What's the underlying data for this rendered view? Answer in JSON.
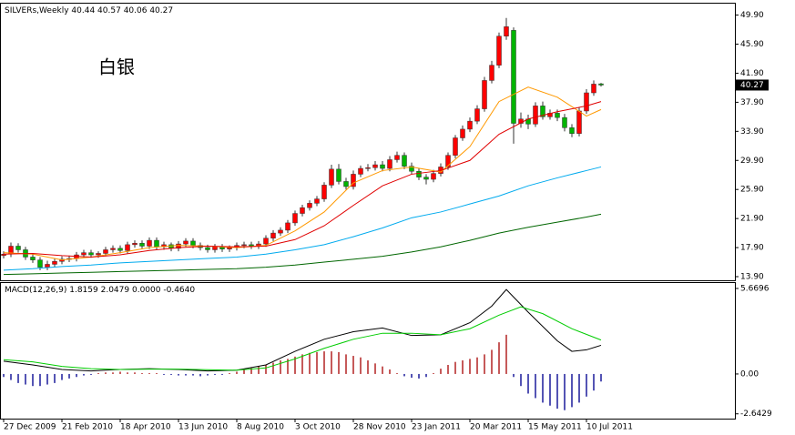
{
  "chart_data": [
    {
      "type": "candlestick",
      "symbol": "SILVERs,Weekly",
      "annotation": "白银",
      "categories": [
        "27 Dec 2009",
        null,
        null,
        null,
        null,
        null,
        null,
        null,
        "21 Feb 2010",
        null,
        null,
        null,
        null,
        null,
        null,
        null,
        "18 Apr 2010",
        null,
        null,
        null,
        null,
        null,
        null,
        null,
        "13 Jun 2010",
        null,
        null,
        null,
        null,
        null,
        null,
        null,
        "8 Aug 2010",
        null,
        null,
        null,
        null,
        null,
        null,
        null,
        "3 Oct 2010",
        null,
        null,
        null,
        null,
        null,
        null,
        null,
        "28 Nov 2010",
        null,
        null,
        null,
        null,
        null,
        null,
        null,
        "23 Jan 2011",
        null,
        null,
        null,
        null,
        null,
        null,
        null,
        "20 Mar 2011",
        null,
        null,
        null,
        null,
        null,
        null,
        null,
        "15 May 2011",
        null,
        null,
        null,
        null,
        null,
        null,
        null,
        "10 Jul 2011",
        null,
        null
      ],
      "open": [
        16.8,
        17.0,
        18.1,
        17.6,
        16.6,
        16.2,
        15.2,
        15.6,
        16.0,
        16.3,
        16.4,
        16.9,
        17.2,
        16.9,
        17.1,
        17.6,
        17.8,
        17.5,
        18.3,
        18.5,
        18.1,
        18.9,
        18.0,
        18.3,
        17.8,
        18.4,
        18.8,
        18.2,
        17.9,
        17.6,
        18.0,
        17.7,
        17.9,
        18.2,
        18.3,
        18.1,
        18.4,
        19.2,
        19.9,
        20.3,
        21.3,
        22.6,
        23.4,
        24.0,
        24.6,
        26.5,
        28.7,
        27.0,
        26.3,
        28.0,
        28.8,
        28.9,
        29.3,
        28.8,
        30.0,
        30.6,
        29.1,
        28.4,
        27.6,
        27.3,
        28.1,
        29.0,
        30.6,
        33.0,
        34.2,
        35.3,
        37.0,
        40.9,
        43.0,
        47.0,
        47.8,
        35.0,
        35.6,
        34.9,
        37.4,
        35.9,
        36.4,
        35.8,
        34.4,
        33.6,
        36.7,
        39.2,
        40.44
      ],
      "high": [
        17.4,
        18.6,
        18.5,
        18.0,
        17.0,
        16.6,
        16.1,
        16.4,
        16.7,
        16.8,
        17.3,
        17.6,
        17.6,
        17.4,
        18.0,
        18.2,
        18.2,
        18.7,
        18.9,
        18.9,
        19.3,
        19.3,
        18.7,
        18.6,
        18.8,
        19.2,
        19.2,
        18.6,
        18.3,
        18.4,
        18.4,
        18.2,
        18.6,
        18.7,
        18.7,
        18.8,
        19.6,
        20.3,
        20.7,
        21.7,
        23.0,
        23.8,
        24.4,
        25.0,
        26.9,
        29.3,
        29.4,
        27.5,
        28.5,
        29.2,
        29.4,
        29.8,
        29.8,
        30.5,
        31.1,
        31.0,
        29.6,
        28.8,
        28.0,
        28.6,
        29.5,
        31.0,
        33.4,
        34.7,
        35.8,
        37.5,
        41.4,
        43.6,
        47.5,
        49.5,
        48.2,
        36.5,
        36.2,
        37.9,
        38.0,
        36.9,
        36.9,
        36.3,
        34.9,
        37.2,
        39.7,
        40.9,
        40.57
      ],
      "low": [
        16.4,
        16.6,
        17.2,
        16.2,
        15.8,
        14.8,
        14.8,
        15.2,
        15.6,
        15.9,
        16.0,
        16.5,
        16.5,
        16.5,
        16.7,
        17.2,
        17.1,
        17.1,
        17.9,
        17.7,
        17.7,
        17.6,
        17.6,
        17.4,
        17.4,
        18.0,
        17.8,
        17.5,
        17.2,
        17.2,
        17.3,
        17.3,
        17.5,
        17.8,
        17.7,
        17.7,
        18.0,
        18.8,
        19.5,
        19.9,
        20.9,
        22.2,
        23.0,
        23.6,
        24.2,
        26.1,
        26.6,
        25.9,
        25.9,
        27.6,
        28.4,
        28.5,
        28.4,
        28.4,
        29.6,
        28.7,
        28.0,
        27.2,
        26.6,
        26.9,
        27.7,
        28.6,
        30.2,
        32.6,
        33.8,
        34.9,
        36.6,
        40.5,
        42.6,
        46.5,
        32.2,
        34.4,
        34.2,
        34.5,
        35.5,
        35.5,
        35.3,
        33.9,
        33.1,
        33.2,
        36.3,
        38.8,
        40.06
      ],
      "close": [
        17.0,
        18.1,
        17.6,
        16.6,
        16.2,
        15.2,
        15.6,
        16.0,
        16.3,
        16.4,
        16.9,
        17.2,
        16.9,
        17.1,
        17.6,
        17.8,
        17.5,
        18.3,
        18.5,
        18.1,
        18.9,
        18.0,
        18.3,
        17.8,
        18.4,
        18.8,
        18.2,
        17.9,
        17.6,
        18.0,
        17.7,
        17.9,
        18.2,
        18.3,
        18.1,
        18.4,
        19.2,
        19.9,
        20.3,
        21.3,
        22.6,
        23.4,
        24.0,
        24.6,
        26.5,
        28.7,
        27.0,
        26.3,
        28.0,
        28.8,
        28.9,
        29.3,
        28.8,
        30.0,
        30.6,
        29.1,
        28.4,
        27.6,
        27.3,
        28.1,
        29.0,
        30.6,
        33.0,
        34.2,
        35.3,
        37.0,
        40.9,
        43.0,
        47.0,
        48.3,
        35.0,
        35.6,
        34.9,
        37.4,
        35.9,
        36.4,
        35.8,
        34.4,
        33.6,
        36.7,
        39.2,
        40.4,
        40.27
      ],
      "up_color": "#ff0000",
      "down_color": "#00b400",
      "series": [
        {
          "color": "#ff9900",
          "x": [
            0,
            4,
            8,
            12,
            16,
            20,
            24,
            28,
            32,
            36,
            40,
            44,
            48,
            52,
            56,
            60,
            64,
            68,
            72,
            76,
            80,
            82
          ],
          "values": [
            17.2,
            17.0,
            16.2,
            16.6,
            17.2,
            17.9,
            18.2,
            18.1,
            17.9,
            18.2,
            20.2,
            22.8,
            26.8,
            28.5,
            29.0,
            28.3,
            31.8,
            38.0,
            40.0,
            38.6,
            36.0,
            36.9
          ]
        },
        {
          "color": "#e00000",
          "x": [
            0,
            4,
            8,
            12,
            16,
            20,
            24,
            28,
            32,
            36,
            40,
            44,
            48,
            52,
            56,
            60,
            64,
            68,
            72,
            76,
            80,
            82
          ],
          "values": [
            17.0,
            17.1,
            16.8,
            16.6,
            16.9,
            17.5,
            17.9,
            18.1,
            18.0,
            18.1,
            19.0,
            20.9,
            23.7,
            26.4,
            28.0,
            28.5,
            29.9,
            33.5,
            35.6,
            36.6,
            37.4,
            38.0
          ]
        },
        {
          "color": "#00aaee",
          "x": [
            0,
            4,
            8,
            12,
            16,
            20,
            24,
            28,
            32,
            36,
            40,
            44,
            48,
            52,
            56,
            60,
            64,
            68,
            72,
            76,
            80,
            82
          ],
          "values": [
            14.8,
            15.0,
            15.3,
            15.5,
            15.8,
            16.0,
            16.2,
            16.4,
            16.6,
            17.0,
            17.6,
            18.3,
            19.4,
            20.6,
            22.0,
            22.8,
            23.9,
            25.0,
            26.4,
            27.5,
            28.5,
            29.0
          ]
        },
        {
          "color": "#006600",
          "x": [
            0,
            4,
            8,
            12,
            16,
            20,
            24,
            28,
            32,
            36,
            40,
            44,
            48,
            52,
            56,
            60,
            64,
            68,
            72,
            76,
            80,
            82
          ],
          "values": [
            14.2,
            14.3,
            14.4,
            14.5,
            14.6,
            14.7,
            14.8,
            14.9,
            15.0,
            15.2,
            15.5,
            15.9,
            16.3,
            16.7,
            17.3,
            18.0,
            18.9,
            19.9,
            20.7,
            21.4,
            22.1,
            22.5
          ]
        }
      ],
      "ylim": [
        13.4,
        51.6
      ],
      "yticks": [
        {
          "value": 49.9,
          "label": "49.90"
        },
        {
          "value": 45.9,
          "label": "45.90"
        },
        {
          "value": 41.9,
          "label": "41.90"
        },
        {
          "value": 37.9,
          "label": "37.90"
        },
        {
          "value": 33.9,
          "label": "33.90"
        },
        {
          "value": 29.9,
          "label": "29.90"
        },
        {
          "value": 25.9,
          "label": "25.90"
        },
        {
          "value": 21.9,
          "label": "21.90"
        },
        {
          "value": 17.9,
          "label": "17.90"
        },
        {
          "value": 13.9,
          "label": "13.90"
        }
      ]
    },
    {
      "type": "macd",
      "title": "MACD(12,26,9)",
      "legend_values": [
        1.8159,
        2.0479,
        {
          "value": 0,
          "label": "0.0000"
        },
        {
          "value": -0.464,
          "label": "-0.4640"
        }
      ],
      "histogram": [
        -0.2,
        -0.4,
        -0.6,
        -0.7,
        -0.8,
        -0.8,
        -0.7,
        -0.6,
        -0.4,
        -0.3,
        -0.2,
        -0.1,
        -0.05,
        0.05,
        0.1,
        0.1,
        0.15,
        0.1,
        0.1,
        0.05,
        0.05,
        0.05,
        -0.05,
        -0.05,
        -0.1,
        -0.1,
        -0.1,
        -0.15,
        -0.1,
        -0.05,
        -0.05,
        0.05,
        0.15,
        0.3,
        0.4,
        0.5,
        0.6,
        0.75,
        0.9,
        1.0,
        1.15,
        1.3,
        1.4,
        1.45,
        1.5,
        1.5,
        1.45,
        1.3,
        1.2,
        1.1,
        0.9,
        0.7,
        0.5,
        0.3,
        0.05,
        -0.15,
        -0.25,
        -0.3,
        -0.2,
        0.05,
        0.35,
        0.6,
        0.8,
        0.9,
        1.0,
        1.1,
        1.3,
        1.6,
        2.1,
        2.6,
        -0.2,
        -0.8,
        -1.3,
        -1.6,
        -1.9,
        -2.1,
        -2.3,
        -2.4,
        -2.2,
        -1.9,
        -1.5,
        -1.1,
        -0.5
      ],
      "positive_color": "#b22222",
      "negative_color": "#1a1a9a",
      "series": [
        {
          "color": "#000000",
          "x": [
            0,
            4,
            8,
            12,
            16,
            20,
            24,
            28,
            32,
            36,
            40,
            44,
            48,
            52,
            56,
            60,
            64,
            67,
            69,
            72,
            76,
            78,
            80,
            82
          ],
          "values": [
            0.85,
            0.6,
            0.3,
            0.2,
            0.3,
            0.35,
            0.3,
            0.2,
            0.25,
            0.6,
            1.5,
            2.3,
            2.8,
            3.05,
            2.55,
            2.6,
            3.4,
            4.5,
            5.6,
            4.1,
            2.2,
            1.5,
            1.6,
            1.9
          ]
        },
        {
          "color": "#00cc00",
          "x": [
            0,
            4,
            8,
            12,
            16,
            20,
            24,
            28,
            32,
            36,
            40,
            44,
            48,
            52,
            56,
            60,
            64,
            68,
            71,
            74,
            78,
            82
          ],
          "values": [
            0.95,
            0.8,
            0.5,
            0.35,
            0.3,
            0.32,
            0.32,
            0.28,
            0.25,
            0.4,
            1.0,
            1.7,
            2.3,
            2.7,
            2.7,
            2.6,
            3.0,
            3.9,
            4.45,
            4.0,
            3.0,
            2.25
          ]
        }
      ],
      "ylim": [
        -2.96,
        6.09
      ],
      "yticks": [
        5.6696,
        {
          "value": 0,
          "label": "0.00"
        },
        -2.6429
      ]
    }
  ]
}
